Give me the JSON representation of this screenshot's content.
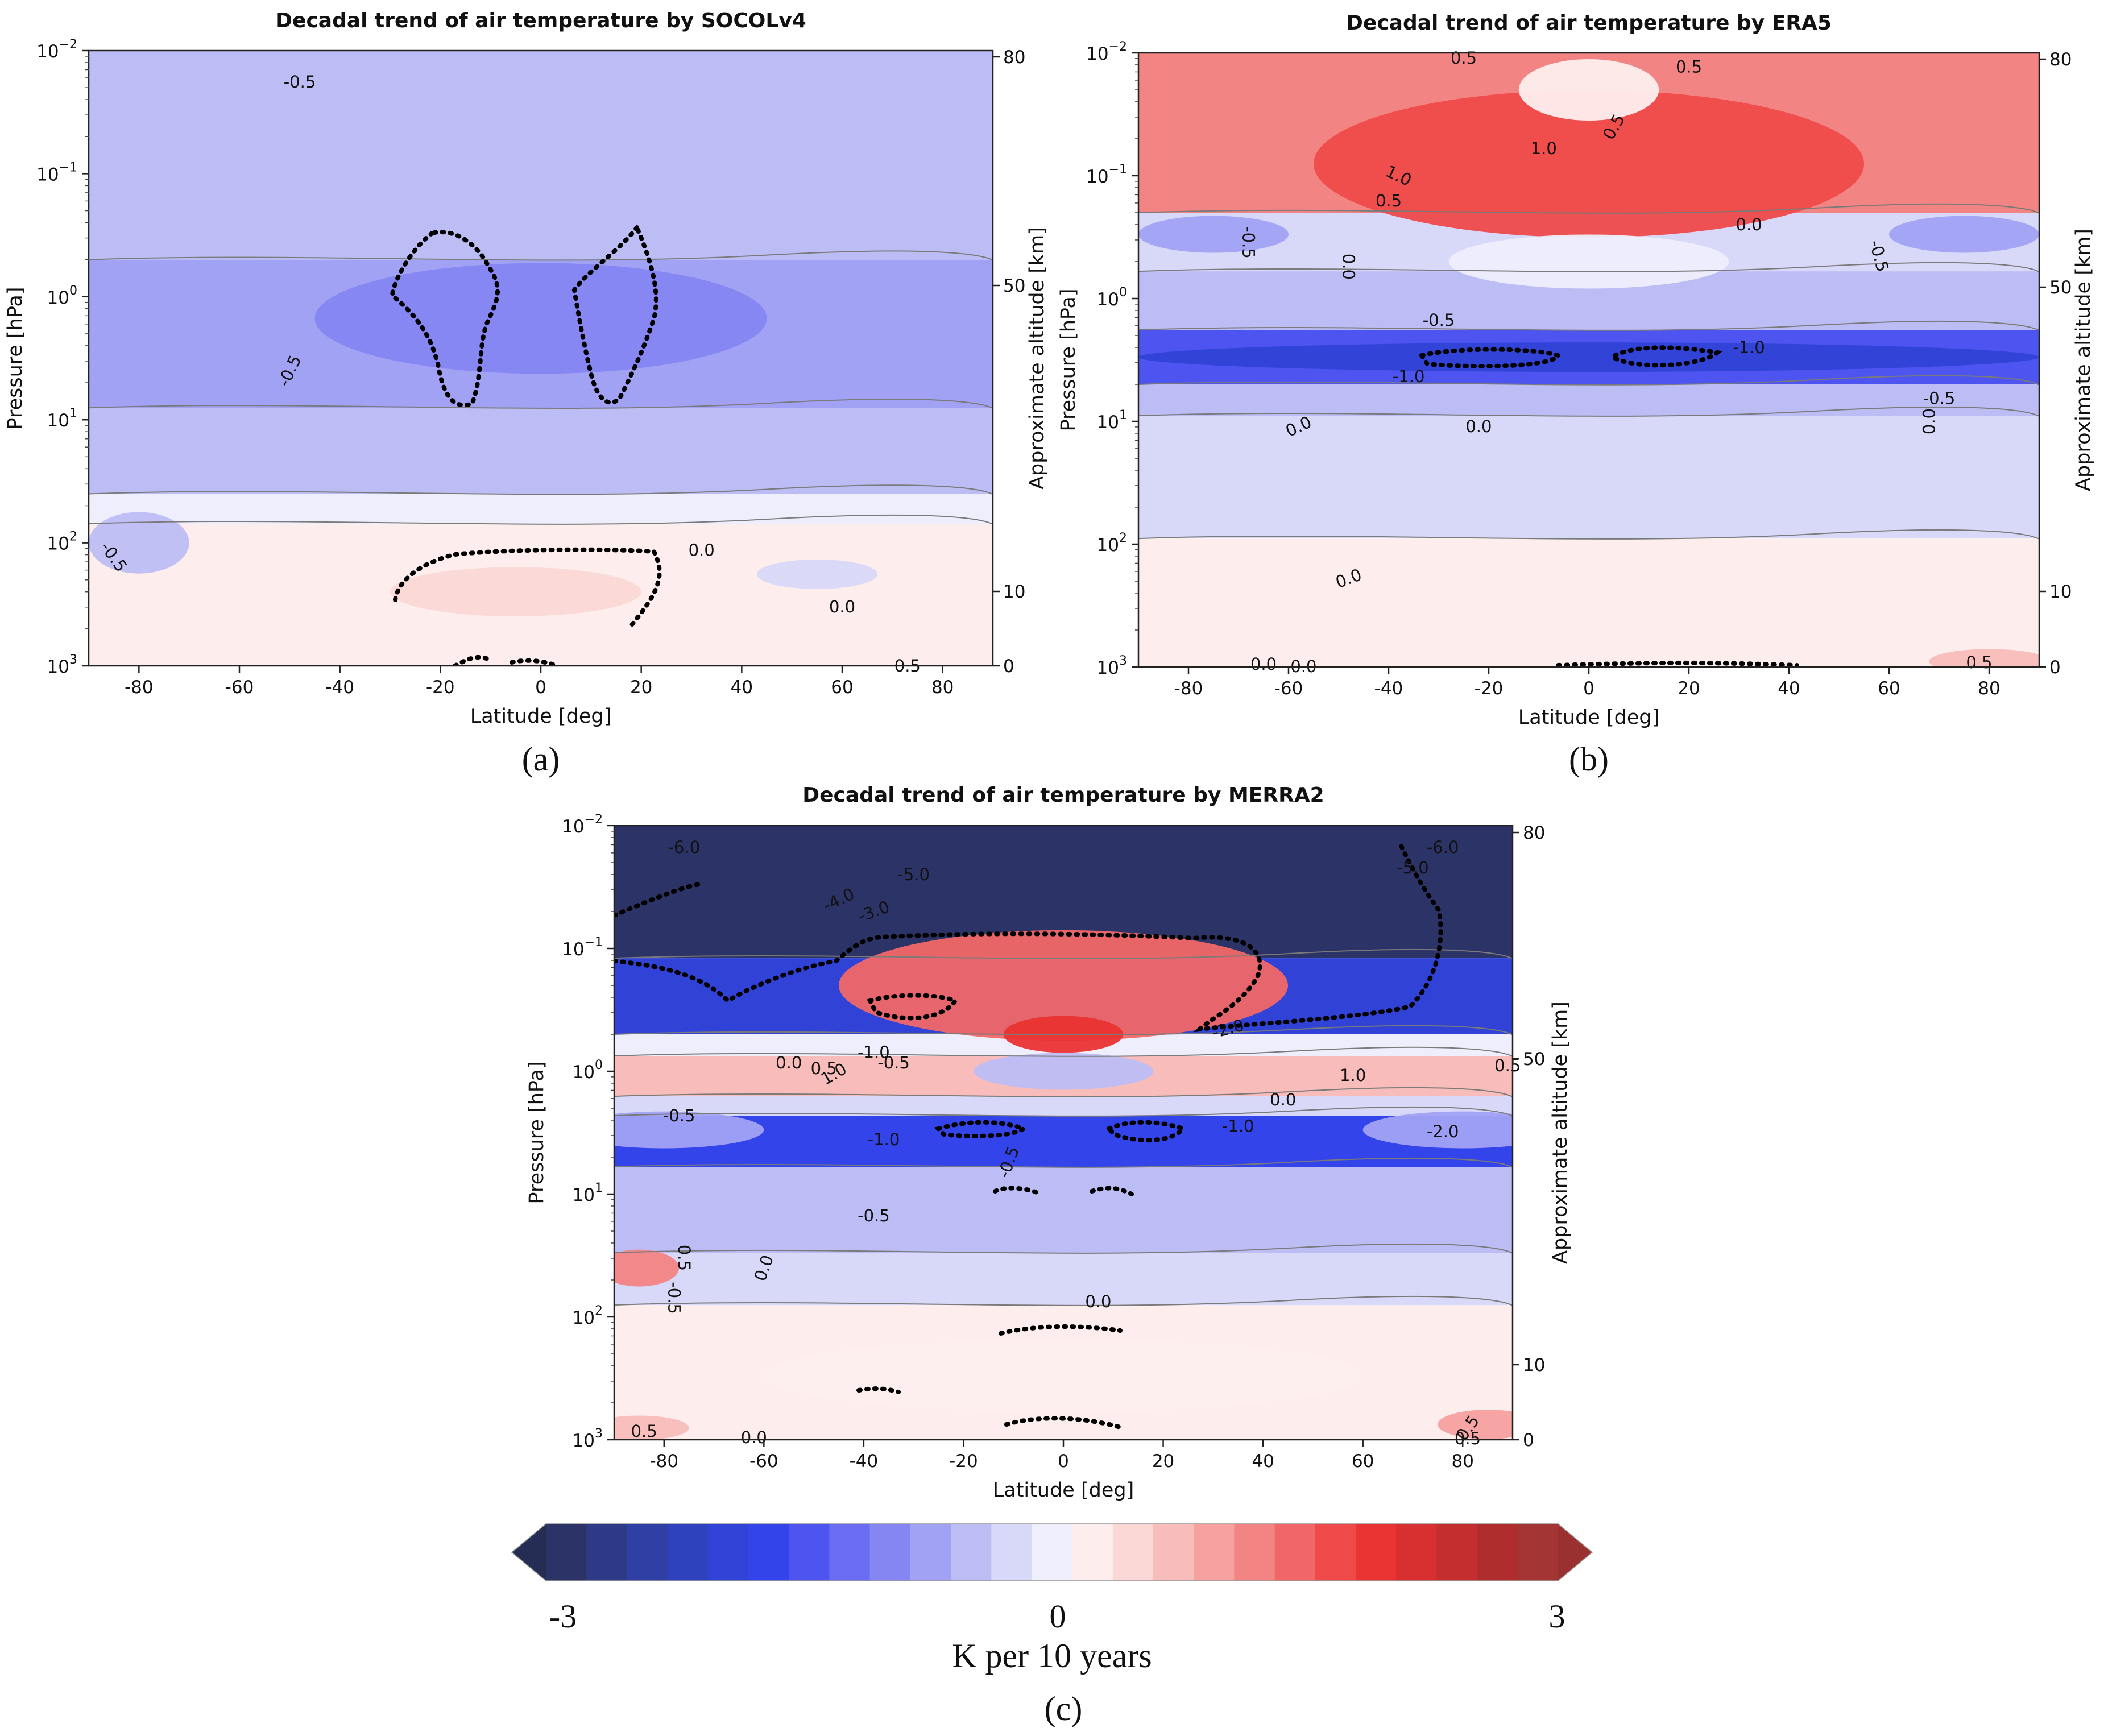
{
  "chart_data": [
    {
      "id": "a",
      "type": "heatmap",
      "title": "Decadal trend of air temperature by SOCOLv4",
      "caption": "(a)",
      "xlabel": "Latitude [deg]",
      "ylabel": "Pressure [hPa]",
      "ylabel_right": "Approximate altitude [km]",
      "xlim": [
        -90,
        90
      ],
      "xticks": [
        "-80",
        "-60",
        "-40",
        "-20",
        "0",
        "20",
        "40",
        "60",
        "80"
      ],
      "ylim_log10_pressure": [
        3,
        -2
      ],
      "yticks": [
        {
          "base": "10",
          "exp": "3"
        },
        {
          "base": "10",
          "exp": "2"
        },
        {
          "base": "10",
          "exp": "1"
        },
        {
          "base": "10",
          "exp": "0"
        },
        {
          "base": "10",
          "exp": "−1"
        },
        {
          "base": "10",
          "exp": "−2"
        }
      ],
      "right_ticks": [
        "0",
        "10",
        "50",
        "80"
      ],
      "bands": [
        {
          "p_top": 0.01,
          "p_bottom": 0.5,
          "value": -0.5
        },
        {
          "p_top": 0.5,
          "p_bottom": 8,
          "value": -0.75
        },
        {
          "p_top": 8,
          "p_bottom": 40,
          "value": -0.4
        },
        {
          "p_top": 40,
          "p_bottom": 70,
          "value": -0.1
        },
        {
          "p_top": 70,
          "p_bottom": 1000,
          "value": 0.25
        }
      ],
      "blobs": [
        {
          "lat": 0,
          "p": 1.5,
          "half_lat": 45,
          "half_dlogp": 0.45,
          "value": -0.9
        },
        {
          "lat": -5,
          "p": 250,
          "half_lat": 25,
          "half_dlogp": 0.2,
          "value": 0.55
        },
        {
          "lat": 55,
          "p": 180,
          "half_lat": 12,
          "half_dlogp": 0.12,
          "value": -0.25
        },
        {
          "lat": -80,
          "p": 100,
          "half_lat": 10,
          "half_dlogp": 0.25,
          "value": -0.6
        }
      ],
      "contour_labels": [
        {
          "text": "-0.5",
          "lat": -48,
          "p": 0.018
        },
        {
          "text": "-0.5",
          "lat": -50,
          "p": 4,
          "rot": -65
        },
        {
          "text": "-0.5",
          "lat": -85,
          "p": 130,
          "rot": 55
        },
        {
          "text": "0.0",
          "lat": 32,
          "p": 115
        },
        {
          "text": "0.0",
          "lat": 60,
          "p": 330
        },
        {
          "text": "0.5",
          "lat": 73,
          "p": 1000
        }
      ],
      "significance_regions": 5
    },
    {
      "id": "b",
      "type": "heatmap",
      "title": "Decadal trend of air temperature by ERA5",
      "caption": "(b)",
      "xlabel": "Latitude [deg]",
      "ylabel": "Pressure [hPa]",
      "ylabel_right": "Approximate altitude [km]",
      "xlim": [
        -90,
        90
      ],
      "xticks": [
        "-80",
        "-60",
        "-40",
        "-20",
        "0",
        "20",
        "40",
        "60",
        "80"
      ],
      "ylim_log10_pressure": [
        3,
        -2
      ],
      "yticks": [
        {
          "base": "10",
          "exp": "3"
        },
        {
          "base": "10",
          "exp": "2"
        },
        {
          "base": "10",
          "exp": "1"
        },
        {
          "base": "10",
          "exp": "0"
        },
        {
          "base": "10",
          "exp": "−1"
        },
        {
          "base": "10",
          "exp": "−2"
        }
      ],
      "right_ticks": [
        "0",
        "10",
        "50",
        "80"
      ],
      "bands": [
        {
          "p_top": 0.01,
          "p_bottom": 0.2,
          "value": 1.1
        },
        {
          "p_top": 0.2,
          "p_bottom": 0.6,
          "value": -0.3
        },
        {
          "p_top": 0.6,
          "p_bottom": 1.8,
          "value": -0.5
        },
        {
          "p_top": 1.8,
          "p_bottom": 5,
          "value": -1.5
        },
        {
          "p_top": 5,
          "p_bottom": 9,
          "value": -0.6
        },
        {
          "p_top": 9,
          "p_bottom": 90,
          "value": -0.25
        },
        {
          "p_top": 90,
          "p_bottom": 1000,
          "value": 0.25
        }
      ],
      "blobs": [
        {
          "lat": 0,
          "p": 0.08,
          "half_lat": 55,
          "half_dlogp": 0.6,
          "value": 1.6
        },
        {
          "lat": 0,
          "p": 0.02,
          "half_lat": 14,
          "half_dlogp": 0.25,
          "value": 0.3
        },
        {
          "lat": 0,
          "p": 0.5,
          "half_lat": 28,
          "half_dlogp": 0.22,
          "value": -0.05
        },
        {
          "lat": 0,
          "p": 3,
          "half_lat": 90,
          "half_dlogp": 0.12,
          "value": -1.9
        },
        {
          "lat": -75,
          "p": 0.3,
          "half_lat": 15,
          "half_dlogp": 0.15,
          "value": -0.8
        },
        {
          "lat": 75,
          "p": 0.3,
          "half_lat": 15,
          "half_dlogp": 0.15,
          "value": -0.8
        },
        {
          "lat": 80,
          "p": 900,
          "half_lat": 12,
          "half_dlogp": 0.1,
          "value": 0.8
        }
      ],
      "contour_labels": [
        {
          "text": "0.5",
          "lat": -25,
          "p": 0.011
        },
        {
          "text": "0.5",
          "lat": 20,
          "p": 0.013
        },
        {
          "text": "0.5",
          "lat": 5,
          "p": 0.04,
          "rot": -60
        },
        {
          "text": "1.0",
          "lat": -9,
          "p": 0.06
        },
        {
          "text": "1.0",
          "lat": -38,
          "p": 0.1,
          "rot": 25
        },
        {
          "text": "0.5",
          "lat": -40,
          "p": 0.16
        },
        {
          "text": "0.0",
          "lat": 32,
          "p": 0.25
        },
        {
          "text": "-0.5",
          "lat": -68,
          "p": 0.35,
          "rot": 90
        },
        {
          "text": "0.0",
          "lat": -48,
          "p": 0.55,
          "rot": 90
        },
        {
          "text": "-0.5",
          "lat": 58,
          "p": 0.45,
          "rot": 75
        },
        {
          "text": "-0.5",
          "lat": -30,
          "p": 1.5
        },
        {
          "text": "-1.0",
          "lat": 32,
          "p": 2.5
        },
        {
          "text": "-1.0",
          "lat": -36,
          "p": 4.3
        },
        {
          "text": "-0.5",
          "lat": 70,
          "p": 6.5
        },
        {
          "text": "0.0",
          "lat": -58,
          "p": 11,
          "rot": -25
        },
        {
          "text": "0.0",
          "lat": -22,
          "p": 11
        },
        {
          "text": "0.0",
          "lat": 68,
          "p": 10,
          "rot": -90
        },
        {
          "text": "0.0",
          "lat": -48,
          "p": 190,
          "rot": -20
        },
        {
          "text": "0.0",
          "lat": -65,
          "p": 950
        },
        {
          "text": "0.0",
          "lat": -57,
          "p": 990
        },
        {
          "text": "0.5",
          "lat": 78,
          "p": 920
        }
      ],
      "significance_regions": 3
    },
    {
      "id": "c",
      "type": "heatmap",
      "title": "Decadal trend of air temperature by MERRA2",
      "caption": "(c)",
      "xlabel": "Latitude [deg]",
      "ylabel": "Pressure [hPa]",
      "ylabel_right": "Approximate altitude [km]",
      "xlim": [
        -90,
        90
      ],
      "xticks": [
        "-80",
        "-60",
        "-40",
        "-20",
        "0",
        "20",
        "40",
        "60",
        "80"
      ],
      "ylim_log10_pressure": [
        3,
        -2
      ],
      "yticks": [
        {
          "base": "10",
          "exp": "3"
        },
        {
          "base": "10",
          "exp": "2"
        },
        {
          "base": "10",
          "exp": "1"
        },
        {
          "base": "10",
          "exp": "0"
        },
        {
          "base": "10",
          "exp": "−1"
        },
        {
          "base": "10",
          "exp": "−2"
        }
      ],
      "right_ticks": [
        "0",
        "10",
        "50",
        "80"
      ],
      "bands": [
        {
          "p_top": 0.01,
          "p_bottom": 0.12,
          "value": -3.2
        },
        {
          "p_top": 0.12,
          "p_bottom": 0.5,
          "value": -2.0
        },
        {
          "p_top": 0.5,
          "p_bottom": 0.75,
          "value": 0.0
        },
        {
          "p_top": 0.75,
          "p_bottom": 1.6,
          "value": 0.7
        },
        {
          "p_top": 1.6,
          "p_bottom": 2.3,
          "value": -0.3
        },
        {
          "p_top": 2.3,
          "p_bottom": 6,
          "value": -1.6
        },
        {
          "p_top": 6,
          "p_bottom": 30,
          "value": -0.55
        },
        {
          "p_top": 30,
          "p_bottom": 80,
          "value": -0.2
        },
        {
          "p_top": 80,
          "p_bottom": 1000,
          "value": 0.3
        }
      ],
      "blobs": [
        {
          "lat": 0,
          "p": 0.2,
          "half_lat": 45,
          "half_dlogp": 0.45,
          "value": 1.4
        },
        {
          "lat": 0,
          "p": 0.5,
          "half_lat": 12,
          "half_dlogp": 0.15,
          "value": 1.9
        },
        {
          "lat": -70,
          "p": 1.0,
          "half_lat": 25,
          "half_dlogp": 0.12,
          "value": 0.8
        },
        {
          "lat": 70,
          "p": 1.0,
          "half_lat": 25,
          "half_dlogp": 0.12,
          "value": 0.8
        },
        {
          "lat": 0,
          "p": 1.0,
          "half_lat": 18,
          "half_dlogp": 0.15,
          "value": -0.6
        },
        {
          "lat": -80,
          "p": 3,
          "half_lat": 20,
          "half_dlogp": 0.15,
          "value": -0.7
        },
        {
          "lat": 80,
          "p": 3,
          "half_lat": 20,
          "half_dlogp": 0.15,
          "value": -0.7
        },
        {
          "lat": -85,
          "p": 40,
          "half_lat": 8,
          "half_dlogp": 0.15,
          "value": 1.1
        },
        {
          "lat": 0,
          "p": 300,
          "half_lat": 60,
          "half_dlogp": 0.3,
          "value": 0.25
        },
        {
          "lat": -85,
          "p": 800,
          "half_lat": 10,
          "half_dlogp": 0.1,
          "value": 0.7
        },
        {
          "lat": 85,
          "p": 750,
          "half_lat": 10,
          "half_dlogp": 0.12,
          "value": 0.9
        }
      ],
      "contour_labels": [
        {
          "text": "-6.0",
          "lat": -76,
          "p": 0.015
        },
        {
          "text": "-6.0",
          "lat": 76,
          "p": 0.015
        },
        {
          "text": "-5.0",
          "lat": -30,
          "p": 0.025
        },
        {
          "text": "-5.0",
          "lat": 70,
          "p": 0.022
        },
        {
          "text": "-4.0",
          "lat": -45,
          "p": 0.04,
          "rot": -25
        },
        {
          "text": "-3.0",
          "lat": -38,
          "p": 0.05,
          "rot": -20
        },
        {
          "text": "-2.0",
          "lat": 33,
          "p": 0.45,
          "rot": -15
        },
        {
          "text": "-1.0",
          "lat": -38,
          "p": 0.7
        },
        {
          "text": "-0.5",
          "lat": -34,
          "p": 0.85
        },
        {
          "text": "0.0",
          "lat": -55,
          "p": 0.85
        },
        {
          "text": "0.5",
          "lat": -48,
          "p": 0.95
        },
        {
          "text": "1.0",
          "lat": -46,
          "p": 1.05,
          "rot": -30
        },
        {
          "text": "1.0",
          "lat": 58,
          "p": 1.08
        },
        {
          "text": "0.5",
          "lat": 89,
          "p": 0.9
        },
        {
          "text": "0.0",
          "lat": 44,
          "p": 1.7
        },
        {
          "text": "-0.5",
          "lat": -77,
          "p": 2.3
        },
        {
          "text": "-1.0",
          "lat": -36,
          "p": 3.6
        },
        {
          "text": "-1.0",
          "lat": 35,
          "p": 2.8
        },
        {
          "text": "-2.0",
          "lat": 76,
          "p": 3.1
        },
        {
          "text": "-0.5",
          "lat": -11,
          "p": 5.5,
          "rot": -70
        },
        {
          "text": "-0.5",
          "lat": -38,
          "p": 15
        },
        {
          "text": "0.5",
          "lat": -76,
          "p": 33,
          "rot": 90
        },
        {
          "text": "0.0",
          "lat": -60,
          "p": 40,
          "rot": -70
        },
        {
          "text": "-0.5",
          "lat": -78,
          "p": 70,
          "rot": 90
        },
        {
          "text": "0.0",
          "lat": 7,
          "p": 75
        },
        {
          "text": "0.5",
          "lat": -84,
          "p": 850
        },
        {
          "text": "0.0",
          "lat": -62,
          "p": 960
        },
        {
          "text": "0.5",
          "lat": 81,
          "p": 800,
          "rot": -55
        },
        {
          "text": "0.5",
          "lat": 81,
          "p": 980
        }
      ],
      "significance_regions": 10
    }
  ],
  "colorbar": {
    "vmin": -3,
    "vmax": 3,
    "colors": [
      "#2c3366",
      "#2e3a85",
      "#2f3fa3",
      "#2e42be",
      "#3043d6",
      "#3244ea",
      "#4d54f0",
      "#6a6cf2",
      "#8686f2",
      "#a2a2f4",
      "#bdbdf6",
      "#d8d8f9",
      "#eeeefd",
      "#fdeeed",
      "#fbd7d6",
      "#f8bcbb",
      "#f6a0a0",
      "#f38484",
      "#f16767",
      "#ef4a4a",
      "#ea3333",
      "#d83030",
      "#c42e2e",
      "#b02d2d",
      "#a33535"
    ],
    "ticks": [
      "-3",
      "0",
      "3"
    ],
    "label": "K per 10 years"
  }
}
